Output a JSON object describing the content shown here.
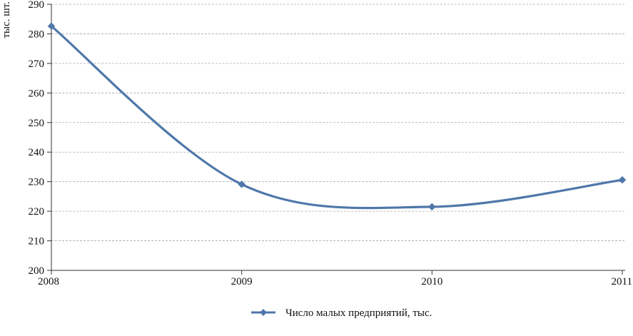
{
  "chart_data": {
    "type": "line",
    "ylabel": "тыс. шт.",
    "x": [
      "2008",
      "2009",
      "2010",
      "2011"
    ],
    "ylim": [
      200,
      290
    ],
    "yticks": [
      "200",
      "210",
      "220",
      "230",
      "240",
      "250",
      "260",
      "270",
      "280",
      "290"
    ],
    "grid": true,
    "legend_position": "bottom",
    "series": [
      {
        "name": "Число малых предприятий, тыс.",
        "values": [
          282.6,
          229.1,
          221.5,
          230.6
        ],
        "color": "#4f77aa"
      }
    ]
  }
}
